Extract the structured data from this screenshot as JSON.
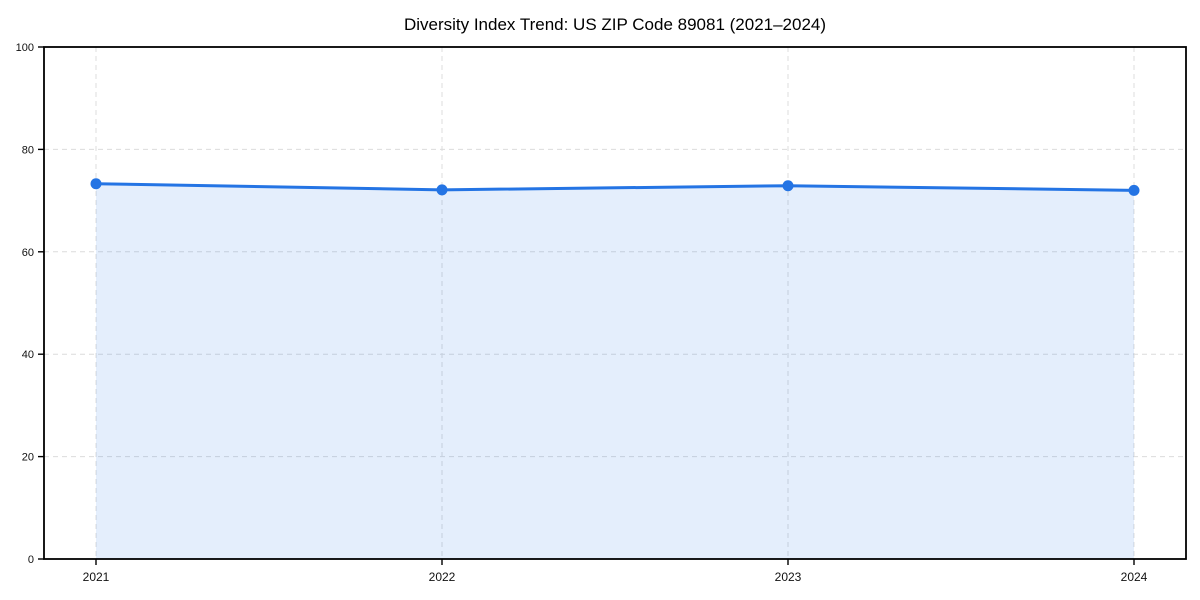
{
  "chart_data": {
    "type": "line",
    "title": "Diversity Index Trend: US ZIP Code 89081 (2021–2024)",
    "x": [
      2021,
      2022,
      2023,
      2024
    ],
    "xticks": [
      "2021",
      "2022",
      "2023",
      "2024"
    ],
    "series": [
      {
        "name": "Diversity Index",
        "values": [
          73.3,
          72.1,
          72.9,
          72.0
        ]
      }
    ],
    "ylim": [
      0,
      100
    ],
    "yticks": [
      0,
      20,
      40,
      60,
      80,
      100
    ],
    "xlabel": "",
    "ylabel": "",
    "grid": true,
    "grid_style": "dashed",
    "area_fill": true,
    "legend_position": "none",
    "line_color": "#2474e4",
    "marker_color": "#2474e4",
    "fill_color": "rgba(36, 116, 228, 0.12)",
    "grid_color": "#dcdcdc",
    "axis_color": "#000000",
    "tick_label_color": "#111111",
    "background_color": "#ffffff"
  }
}
